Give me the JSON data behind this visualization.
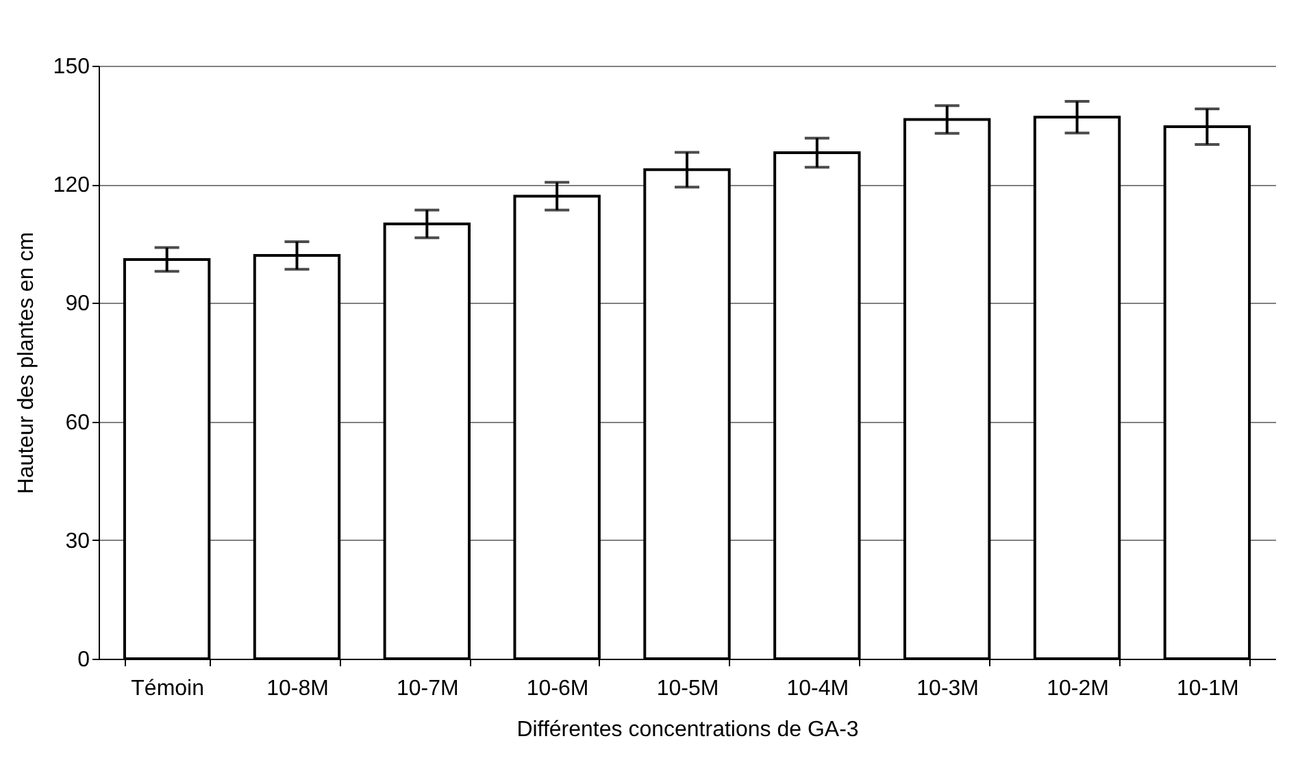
{
  "chart_data": {
    "type": "bar",
    "xlabel": "Différentes concentrations de GA-3",
    "ylabel": "Hauteur des plantes en cm",
    "categories": [
      "Témoin",
      "10-8M",
      "10-7M",
      "10-6M",
      "10-5M",
      "10-4M",
      "10-3M",
      "10-2M",
      "10-1M"
    ],
    "values": [
      101,
      102,
      110,
      117,
      123.7,
      128,
      136.4,
      137,
      134.6
    ],
    "errors": [
      3,
      3.5,
      3.5,
      3.5,
      4.4,
      3.7,
      3.5,
      4,
      4.5
    ],
    "color": "#ffffff",
    "ylim": [
      0,
      150
    ],
    "yticks": [
      0,
      30,
      60,
      90,
      120,
      150
    ],
    "grid": "y"
  }
}
